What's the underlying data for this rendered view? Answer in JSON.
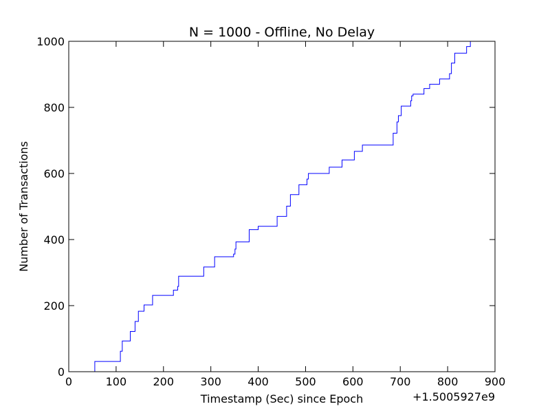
{
  "chart_data": {
    "type": "line",
    "title": "N = 1000 - Offline, No Delay",
    "xlabel": "Timestamp (Sec) since Epoch",
    "ylabel": "Number of Transactions",
    "x_offset_label": "+1.5005927e9",
    "xlim": [
      0,
      900
    ],
    "ylim": [
      0,
      1000
    ],
    "x_ticks": [
      "0",
      "100",
      "200",
      "300",
      "400",
      "500",
      "600",
      "700",
      "800",
      "900"
    ],
    "y_ticks": [
      "0",
      "200",
      "400",
      "600",
      "800",
      "1000"
    ],
    "grid": false,
    "line_color": "#0000ff",
    "series": [
      {
        "style": "step",
        "points": [
          [
            55,
            0
          ],
          [
            55,
            31
          ],
          [
            109,
            31
          ],
          [
            109,
            62
          ],
          [
            113,
            62
          ],
          [
            113,
            93
          ],
          [
            130,
            93
          ],
          [
            130,
            122
          ],
          [
            140,
            122
          ],
          [
            140,
            152
          ],
          [
            147,
            152
          ],
          [
            147,
            183
          ],
          [
            159,
            183
          ],
          [
            159,
            202
          ],
          [
            177,
            202
          ],
          [
            177,
            231
          ],
          [
            221,
            231
          ],
          [
            221,
            247
          ],
          [
            230,
            247
          ],
          [
            230,
            258
          ],
          [
            232,
            258
          ],
          [
            232,
            289
          ],
          [
            285,
            289
          ],
          [
            285,
            317
          ],
          [
            308,
            317
          ],
          [
            308,
            348
          ],
          [
            348,
            348
          ],
          [
            348,
            356
          ],
          [
            351,
            356
          ],
          [
            351,
            371
          ],
          [
            353,
            371
          ],
          [
            353,
            393
          ],
          [
            381,
            393
          ],
          [
            381,
            430
          ],
          [
            400,
            430
          ],
          [
            400,
            440
          ],
          [
            440,
            440
          ],
          [
            440,
            470
          ],
          [
            460,
            470
          ],
          [
            460,
            501
          ],
          [
            468,
            501
          ],
          [
            468,
            536
          ],
          [
            486,
            536
          ],
          [
            486,
            566
          ],
          [
            503,
            566
          ],
          [
            503,
            583
          ],
          [
            506,
            583
          ],
          [
            506,
            600
          ],
          [
            550,
            600
          ],
          [
            550,
            619
          ],
          [
            577,
            619
          ],
          [
            577,
            641
          ],
          [
            603,
            641
          ],
          [
            603,
            667
          ],
          [
            620,
            667
          ],
          [
            620,
            686
          ],
          [
            685,
            686
          ],
          [
            685,
            722
          ],
          [
            693,
            722
          ],
          [
            693,
            756
          ],
          [
            696,
            756
          ],
          [
            696,
            775
          ],
          [
            702,
            775
          ],
          [
            702,
            804
          ],
          [
            722,
            804
          ],
          [
            722,
            820
          ],
          [
            724,
            820
          ],
          [
            724,
            835
          ],
          [
            727,
            835
          ],
          [
            727,
            840
          ],
          [
            750,
            840
          ],
          [
            750,
            857
          ],
          [
            762,
            857
          ],
          [
            762,
            870
          ],
          [
            783,
            870
          ],
          [
            783,
            886
          ],
          [
            804,
            886
          ],
          [
            804,
            902
          ],
          [
            808,
            902
          ],
          [
            808,
            934
          ],
          [
            815,
            934
          ],
          [
            815,
            964
          ],
          [
            840,
            964
          ],
          [
            840,
            984
          ],
          [
            848,
            984
          ],
          [
            848,
            1000
          ],
          [
            852,
            1000
          ]
        ]
      }
    ]
  }
}
